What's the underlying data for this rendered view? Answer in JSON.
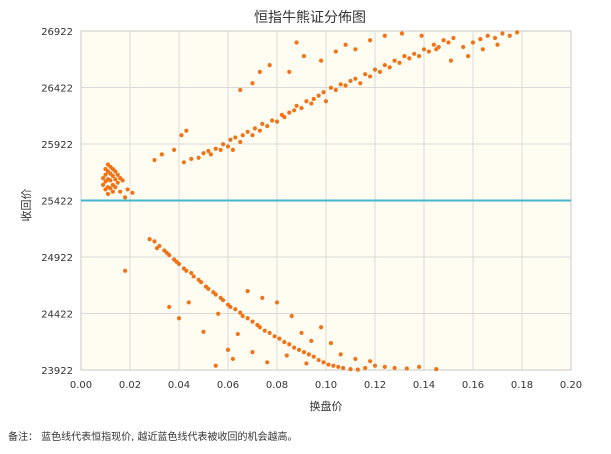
{
  "chart_data": {
    "type": "scatter",
    "title": "恒指牛熊证分佈图",
    "xlabel": "换盘价",
    "ylabel": "收回价",
    "xlim": [
      0.0,
      0.2
    ],
    "ylim": [
      23922,
      26922
    ],
    "x_ticks": [
      "0.00",
      "0.02",
      "0.04",
      "0.06",
      "0.08",
      "0.10",
      "0.12",
      "0.14",
      "0.16",
      "0.18",
      "0.20"
    ],
    "y_ticks": [
      "26922",
      "26422",
      "25922",
      "25422",
      "24922",
      "24422",
      "23922"
    ],
    "grid": true,
    "reference_line": {
      "y": 25422,
      "color": "#46b6d0"
    },
    "point_color": "#f07318",
    "series": [
      {
        "values": [
          [
            0.009,
            25620
          ],
          [
            0.009,
            25560
          ],
          [
            0.01,
            25700
          ],
          [
            0.01,
            25650
          ],
          [
            0.01,
            25590
          ],
          [
            0.01,
            25520
          ],
          [
            0.011,
            25740
          ],
          [
            0.011,
            25680
          ],
          [
            0.011,
            25610
          ],
          [
            0.011,
            25540
          ],
          [
            0.011,
            25480
          ],
          [
            0.012,
            25720
          ],
          [
            0.012,
            25660
          ],
          [
            0.012,
            25600
          ],
          [
            0.012,
            25530
          ],
          [
            0.013,
            25700
          ],
          [
            0.013,
            25640
          ],
          [
            0.013,
            25560
          ],
          [
            0.013,
            25500
          ],
          [
            0.014,
            25680
          ],
          [
            0.014,
            25610
          ],
          [
            0.014,
            25540
          ],
          [
            0.015,
            25650
          ],
          [
            0.015,
            25580
          ],
          [
            0.016,
            25620
          ],
          [
            0.016,
            25500
          ],
          [
            0.017,
            25600
          ],
          [
            0.018,
            25450
          ],
          [
            0.019,
            25520
          ],
          [
            0.021,
            25490
          ],
          [
            0.03,
            25780
          ],
          [
            0.033,
            25830
          ],
          [
            0.038,
            25870
          ],
          [
            0.041,
            26000
          ],
          [
            0.043,
            26040
          ],
          [
            0.042,
            25760
          ],
          [
            0.045,
            25790
          ],
          [
            0.048,
            25800
          ],
          [
            0.05,
            25840
          ],
          [
            0.052,
            25860
          ],
          [
            0.053,
            25830
          ],
          [
            0.055,
            25880
          ],
          [
            0.057,
            25870
          ],
          [
            0.058,
            25920
          ],
          [
            0.06,
            25900
          ],
          [
            0.061,
            25960
          ],
          [
            0.062,
            25870
          ],
          [
            0.063,
            25980
          ],
          [
            0.065,
            25940
          ],
          [
            0.066,
            26000
          ],
          [
            0.068,
            26030
          ],
          [
            0.07,
            26000
          ],
          [
            0.071,
            26060
          ],
          [
            0.073,
            26040
          ],
          [
            0.074,
            26100
          ],
          [
            0.076,
            26080
          ],
          [
            0.078,
            26130
          ],
          [
            0.08,
            26120
          ],
          [
            0.082,
            26180
          ],
          [
            0.083,
            26160
          ],
          [
            0.085,
            26200
          ],
          [
            0.087,
            26220
          ],
          [
            0.088,
            26260
          ],
          [
            0.09,
            26240
          ],
          [
            0.092,
            26300
          ],
          [
            0.094,
            26280
          ],
          [
            0.095,
            26320
          ],
          [
            0.097,
            26350
          ],
          [
            0.099,
            26380
          ],
          [
            0.1,
            26300
          ],
          [
            0.102,
            26420
          ],
          [
            0.104,
            26400
          ],
          [
            0.106,
            26450
          ],
          [
            0.108,
            26440
          ],
          [
            0.11,
            26480
          ],
          [
            0.112,
            26500
          ],
          [
            0.114,
            26460
          ],
          [
            0.116,
            26540
          ],
          [
            0.118,
            26520
          ],
          [
            0.12,
            26580
          ],
          [
            0.122,
            26560
          ],
          [
            0.124,
            26620
          ],
          [
            0.126,
            26600
          ],
          [
            0.128,
            26660
          ],
          [
            0.13,
            26640
          ],
          [
            0.132,
            26700
          ],
          [
            0.134,
            26680
          ],
          [
            0.136,
            26720
          ],
          [
            0.138,
            26700
          ],
          [
            0.14,
            26760
          ],
          [
            0.142,
            26740
          ],
          [
            0.144,
            26800
          ],
          [
            0.146,
            26780
          ],
          [
            0.148,
            26840
          ],
          [
            0.15,
            26820
          ],
          [
            0.152,
            26860
          ],
          [
            0.156,
            26780
          ],
          [
            0.16,
            26820
          ],
          [
            0.163,
            26850
          ],
          [
            0.166,
            26880
          ],
          [
            0.169,
            26860
          ],
          [
            0.172,
            26900
          ],
          [
            0.175,
            26880
          ],
          [
            0.178,
            26910
          ],
          [
            0.065,
            26400
          ],
          [
            0.07,
            26460
          ],
          [
            0.073,
            26560
          ],
          [
            0.077,
            26620
          ],
          [
            0.085,
            26560
          ],
          [
            0.088,
            26820
          ],
          [
            0.091,
            26700
          ],
          [
            0.098,
            26660
          ],
          [
            0.104,
            26740
          ],
          [
            0.108,
            26800
          ],
          [
            0.112,
            26760
          ],
          [
            0.118,
            26840
          ],
          [
            0.124,
            26880
          ],
          [
            0.131,
            26900
          ],
          [
            0.139,
            26880
          ],
          [
            0.145,
            26760
          ],
          [
            0.151,
            26660
          ],
          [
            0.158,
            26700
          ],
          [
            0.164,
            26760
          ],
          [
            0.17,
            26800
          ],
          [
            0.028,
            25080
          ],
          [
            0.03,
            25060
          ],
          [
            0.031,
            25000
          ],
          [
            0.032,
            25020
          ],
          [
            0.034,
            24980
          ],
          [
            0.035,
            24960
          ],
          [
            0.036,
            24940
          ],
          [
            0.038,
            24900
          ],
          [
            0.039,
            24880
          ],
          [
            0.04,
            24860
          ],
          [
            0.042,
            24820
          ],
          [
            0.043,
            24800
          ],
          [
            0.045,
            24780
          ],
          [
            0.046,
            24750
          ],
          [
            0.048,
            24720
          ],
          [
            0.049,
            24700
          ],
          [
            0.051,
            24660
          ],
          [
            0.052,
            24640
          ],
          [
            0.054,
            24610
          ],
          [
            0.055,
            24590
          ],
          [
            0.057,
            24560
          ],
          [
            0.058,
            24540
          ],
          [
            0.06,
            24500
          ],
          [
            0.061,
            24480
          ],
          [
            0.063,
            24460
          ],
          [
            0.065,
            24430
          ],
          [
            0.066,
            24400
          ],
          [
            0.068,
            24380
          ],
          [
            0.07,
            24350
          ],
          [
            0.072,
            24320
          ],
          [
            0.073,
            24300
          ],
          [
            0.075,
            24270
          ],
          [
            0.077,
            24250
          ],
          [
            0.079,
            24220
          ],
          [
            0.081,
            24200
          ],
          [
            0.083,
            24170
          ],
          [
            0.085,
            24150
          ],
          [
            0.087,
            24120
          ],
          [
            0.089,
            24100
          ],
          [
            0.091,
            24080
          ],
          [
            0.093,
            24060
          ],
          [
            0.095,
            24040
          ],
          [
            0.097,
            24010
          ],
          [
            0.099,
            23990
          ],
          [
            0.101,
            23970
          ],
          [
            0.103,
            23960
          ],
          [
            0.105,
            23950
          ],
          [
            0.107,
            23940
          ],
          [
            0.11,
            23930
          ],
          [
            0.113,
            23925
          ],
          [
            0.116,
            23940
          ],
          [
            0.12,
            23960
          ],
          [
            0.124,
            23950
          ],
          [
            0.128,
            23940
          ],
          [
            0.133,
            23935
          ],
          [
            0.138,
            23950
          ],
          [
            0.145,
            23930
          ],
          [
            0.018,
            24800
          ],
          [
            0.036,
            24480
          ],
          [
            0.04,
            24380
          ],
          [
            0.044,
            24520
          ],
          [
            0.05,
            24260
          ],
          [
            0.056,
            24420
          ],
          [
            0.06,
            24100
          ],
          [
            0.064,
            24240
          ],
          [
            0.068,
            24620
          ],
          [
            0.074,
            24560
          ],
          [
            0.08,
            24520
          ],
          [
            0.086,
            24400
          ],
          [
            0.09,
            24250
          ],
          [
            0.094,
            24180
          ],
          [
            0.098,
            24300
          ],
          [
            0.102,
            24160
          ],
          [
            0.106,
            24060
          ],
          [
            0.112,
            24020
          ],
          [
            0.118,
            24000
          ],
          [
            0.055,
            23960
          ],
          [
            0.062,
            24020
          ],
          [
            0.07,
            24080
          ],
          [
            0.076,
            23990
          ],
          [
            0.084,
            24050
          ],
          [
            0.092,
            23980
          ]
        ]
      }
    ]
  },
  "note": "备注：  蓝色线代表恒指现价, 越近蓝色线代表被收回的机会越高。"
}
